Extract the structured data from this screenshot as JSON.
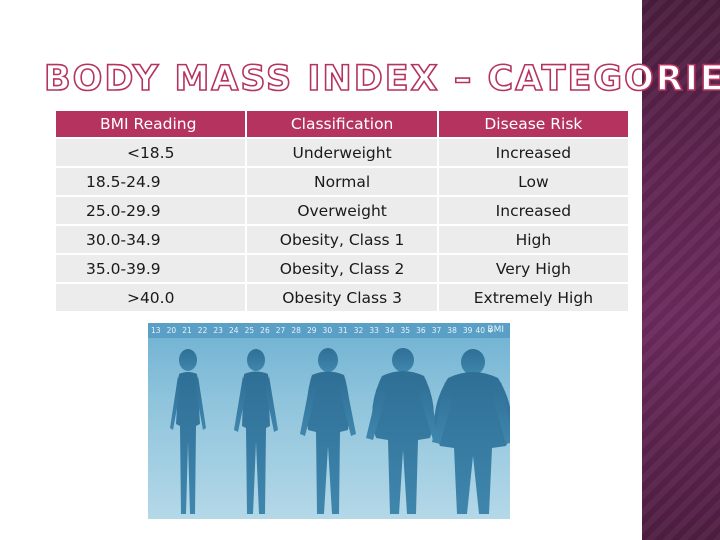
{
  "title": "BODY MASS INDEX – CATEGORIES",
  "table": {
    "headers": [
      "BMI Reading",
      "Classification",
      "Disease Risk"
    ],
    "rows": [
      [
        "<18.5",
        "Underweight",
        "Increased"
      ],
      [
        "18.5-24.9",
        "Normal",
        "Low"
      ],
      [
        "25.0-29.9",
        "Overweight",
        "Increased"
      ],
      [
        "30.0-34.9",
        "Obesity, Class 1",
        "High"
      ],
      [
        "35.0-39.9",
        "Obesity, Class 2",
        "Very High"
      ],
      [
        ">40.0",
        "Obesity Class 3",
        "Extremely High"
      ]
    ]
  },
  "figure": {
    "scale_ticks": [
      "13",
      "20",
      "21",
      "22",
      "23",
      "24",
      "25",
      "26",
      "27",
      "28",
      "29",
      "30",
      "31",
      "32",
      "33",
      "34",
      "35",
      "36",
      "37",
      "38",
      "39",
      "40 +"
    ],
    "scale_label": "BMI"
  },
  "colors": {
    "accent": "#b5345f",
    "row_bg": "#ececec",
    "side_panel": "#5e2450"
  }
}
